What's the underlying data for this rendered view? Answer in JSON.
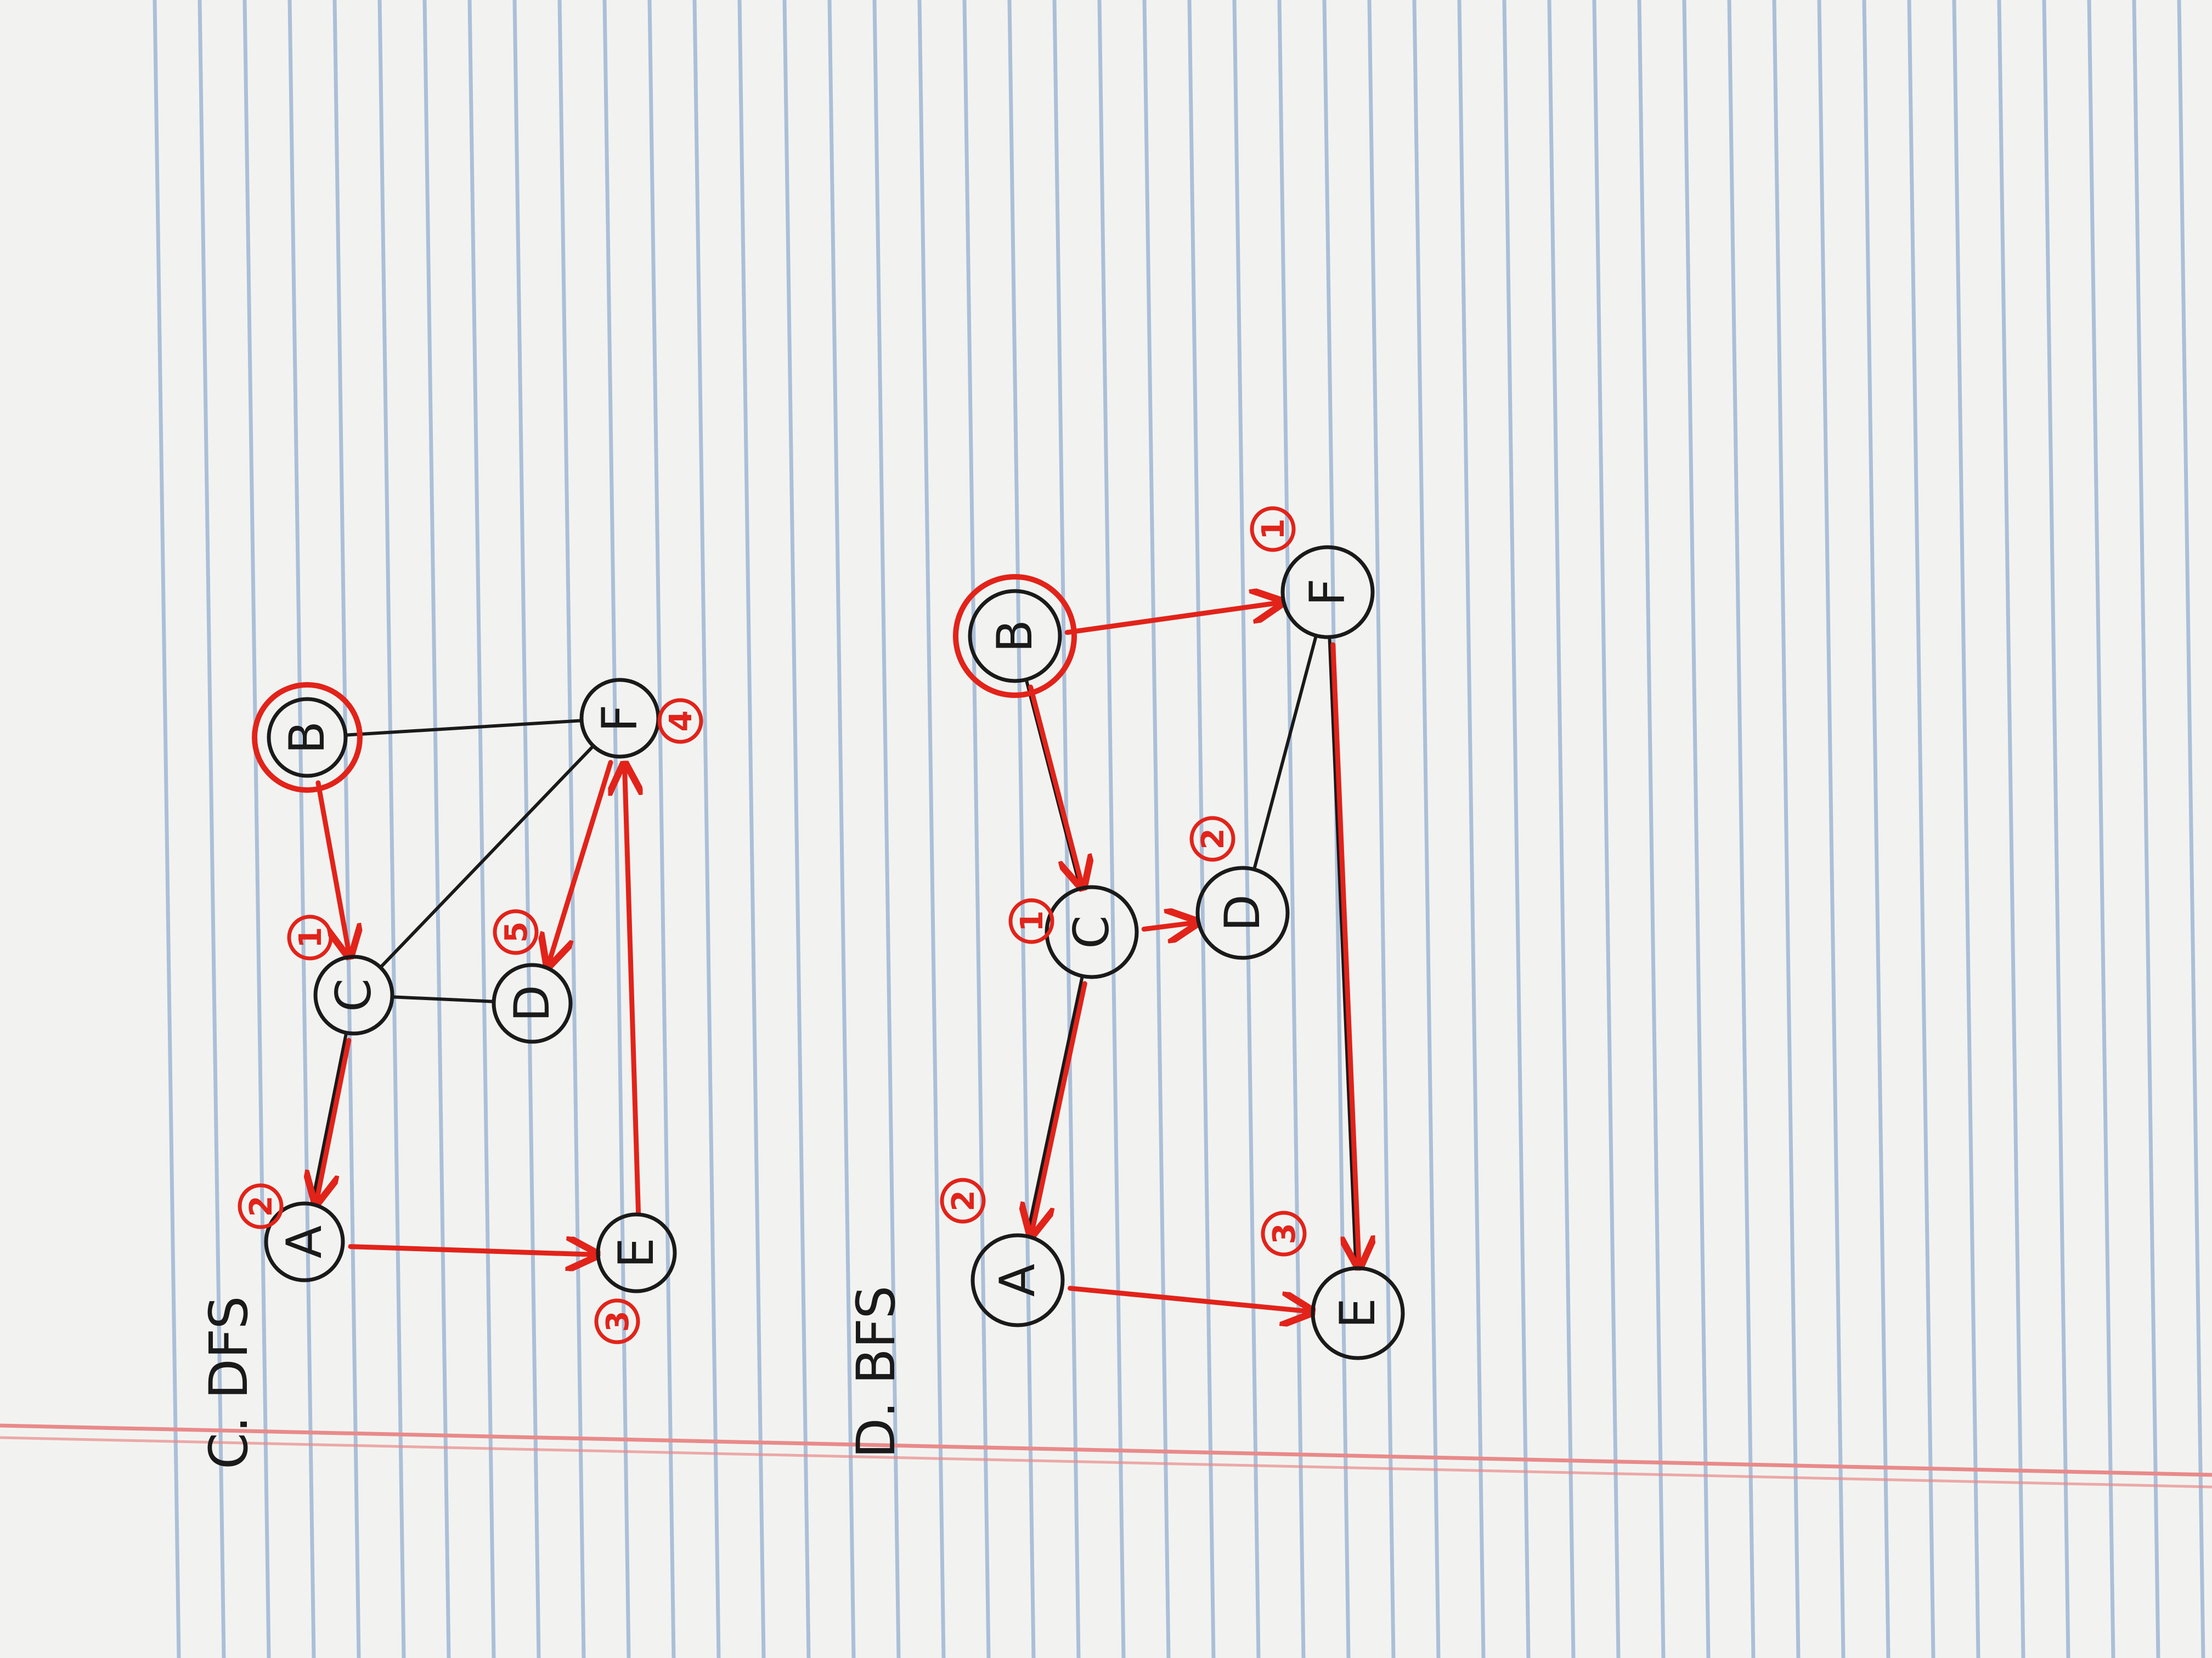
{
  "colors": {
    "paper": "#f2f3f0",
    "rule_line": "#9fb7d6",
    "margin_line": "#e98a8a",
    "ink": "#1a1a1a",
    "red_ink": "#e2231a"
  },
  "sections": [
    {
      "id": "dfs",
      "heading": "C. DFS",
      "nodes": [
        {
          "id": "A",
          "label": "A"
        },
        {
          "id": "B",
          "label": "B"
        },
        {
          "id": "C",
          "label": "C"
        },
        {
          "id": "D",
          "label": "D"
        },
        {
          "id": "E",
          "label": "E"
        },
        {
          "id": "F",
          "label": "F"
        }
      ],
      "edges": [
        {
          "from": "B",
          "to": "F"
        },
        {
          "from": "C",
          "to": "F"
        },
        {
          "from": "C",
          "to": "D"
        },
        {
          "from": "A",
          "to": "C"
        }
      ],
      "traversal": [
        {
          "from": "B",
          "to": "C"
        },
        {
          "from": "C",
          "to": "A"
        },
        {
          "from": "A",
          "to": "E"
        },
        {
          "from": "E",
          "to": "F"
        },
        {
          "from": "F",
          "to": "D"
        }
      ],
      "order_labels": [
        {
          "text": "1",
          "near": "C"
        },
        {
          "text": "2",
          "near": "A"
        },
        {
          "text": "3",
          "near": "E"
        },
        {
          "text": "4",
          "near": "F"
        },
        {
          "text": "5",
          "near": "D"
        }
      ],
      "start": "B"
    },
    {
      "id": "bfs",
      "heading": "D. BFS",
      "nodes": [
        {
          "id": "A",
          "label": "A"
        },
        {
          "id": "B",
          "label": "B"
        },
        {
          "id": "C",
          "label": "C"
        },
        {
          "id": "D",
          "label": "D"
        },
        {
          "id": "E",
          "label": "E"
        },
        {
          "id": "F",
          "label": "F"
        }
      ],
      "edges": [
        {
          "from": "B",
          "to": "C"
        },
        {
          "from": "F",
          "to": "D"
        },
        {
          "from": "C",
          "to": "A"
        },
        {
          "from": "F",
          "to": "E"
        }
      ],
      "traversal": [
        {
          "from": "B",
          "to": "F"
        },
        {
          "from": "B",
          "to": "C"
        },
        {
          "from": "C",
          "to": "D"
        },
        {
          "from": "C",
          "to": "A"
        },
        {
          "from": "A",
          "to": "E"
        },
        {
          "from": "F",
          "to": "E"
        }
      ],
      "order_labels": [
        {
          "text": "1",
          "near": "F"
        },
        {
          "text": "1",
          "near": "C"
        },
        {
          "text": "2",
          "near": "D"
        },
        {
          "text": "2",
          "near": "A"
        },
        {
          "text": "3",
          "near": "E"
        }
      ],
      "start": "B"
    }
  ]
}
